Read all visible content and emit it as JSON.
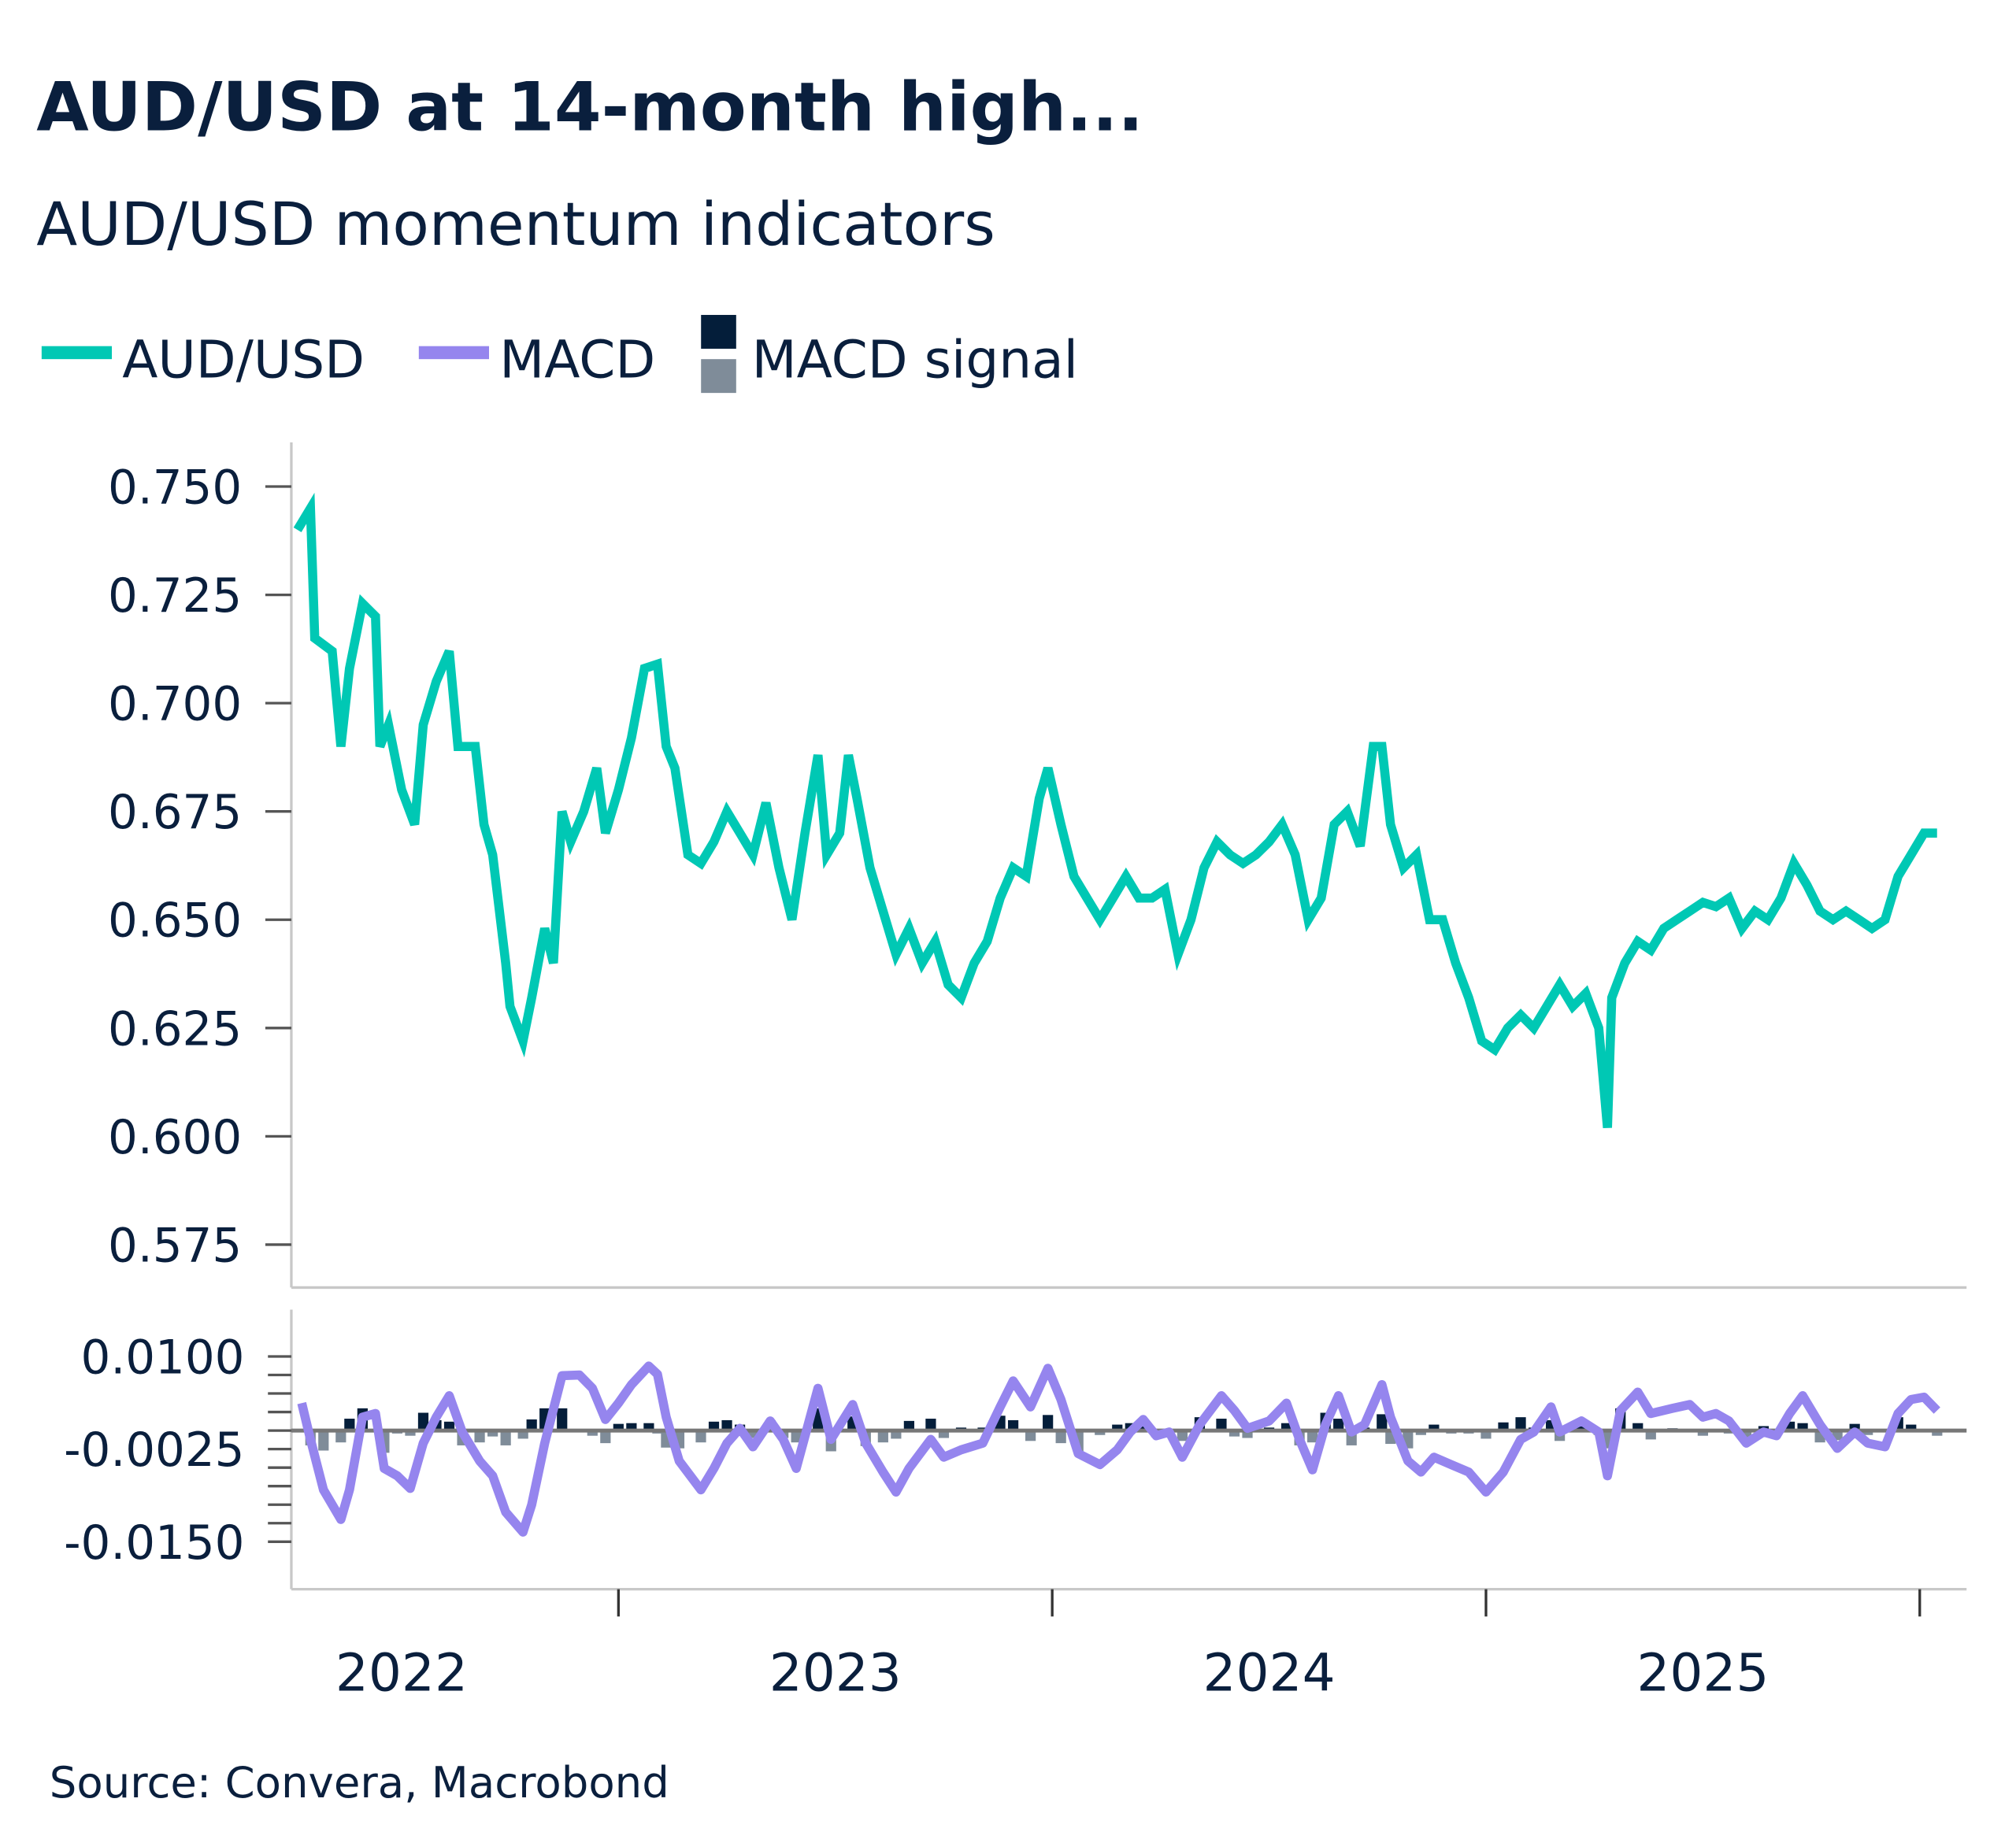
{
  "header": {
    "title": "AUD/USD at 14-month high...",
    "subtitle": "AUD/USD momentum indicators"
  },
  "legend": [
    {
      "label": "AUD/USD",
      "color": "#00c8b4"
    },
    {
      "label": "MACD",
      "color": "#9585ee"
    },
    {
      "label": "MACD signal",
      "colors": [
        "#041e3a",
        "#7f8c99"
      ]
    }
  ],
  "footer": {
    "source": "Source: Convera, Macrobond"
  },
  "chart_data": [
    {
      "type": "line",
      "panel": "top",
      "series_name": "AUD/USD",
      "color": "#00c8b4",
      "ylim": [
        0.565,
        0.76
      ],
      "yticks": [
        "0.750",
        "0.725",
        "0.700",
        "0.675",
        "0.650",
        "0.625",
        "0.600",
        "0.575"
      ],
      "xlim": [
        2022.0,
        2026.1
      ],
      "xticks": [
        "2022",
        "2023",
        "2024",
        "2025"
      ],
      "grid": false,
      "points": [
        [
          2022.26,
          0.74
        ],
        [
          2022.29,
          0.745
        ],
        [
          2022.3,
          0.715
        ],
        [
          2022.34,
          0.712
        ],
        [
          2022.36,
          0.69
        ],
        [
          2022.38,
          0.708
        ],
        [
          2022.41,
          0.723
        ],
        [
          2022.44,
          0.72
        ],
        [
          2022.45,
          0.69
        ],
        [
          2022.47,
          0.695
        ],
        [
          2022.5,
          0.68
        ],
        [
          2022.53,
          0.672
        ],
        [
          2022.55,
          0.695
        ],
        [
          2022.58,
          0.705
        ],
        [
          2022.61,
          0.712
        ],
        [
          2022.63,
          0.69
        ],
        [
          2022.67,
          0.69
        ],
        [
          2022.69,
          0.672
        ],
        [
          2022.71,
          0.665
        ],
        [
          2022.74,
          0.64
        ],
        [
          2022.75,
          0.63
        ],
        [
          2022.78,
          0.622
        ],
        [
          2022.8,
          0.632
        ],
        [
          2022.83,
          0.648
        ],
        [
          2022.85,
          0.64
        ],
        [
          2022.87,
          0.675
        ],
        [
          2022.89,
          0.668
        ],
        [
          2022.92,
          0.675
        ],
        [
          2022.95,
          0.685
        ],
        [
          2022.97,
          0.67
        ],
        [
          2023.0,
          0.68
        ],
        [
          2023.03,
          0.692
        ],
        [
          2023.06,
          0.708
        ],
        [
          2023.09,
          0.709
        ],
        [
          2023.11,
          0.69
        ],
        [
          2023.13,
          0.685
        ],
        [
          2023.16,
          0.665
        ],
        [
          2023.19,
          0.663
        ],
        [
          2023.22,
          0.668
        ],
        [
          2023.25,
          0.675
        ],
        [
          2023.28,
          0.67
        ],
        [
          2023.31,
          0.665
        ],
        [
          2023.34,
          0.677
        ],
        [
          2023.37,
          0.662
        ],
        [
          2023.4,
          0.65
        ],
        [
          2023.43,
          0.67
        ],
        [
          2023.46,
          0.688
        ],
        [
          2023.48,
          0.665
        ],
        [
          2023.51,
          0.67
        ],
        [
          2023.53,
          0.688
        ],
        [
          2023.55,
          0.678
        ],
        [
          2023.58,
          0.662
        ],
        [
          2023.61,
          0.652
        ],
        [
          2023.64,
          0.642
        ],
        [
          2023.67,
          0.648
        ],
        [
          2023.7,
          0.64
        ],
        [
          2023.73,
          0.645
        ],
        [
          2023.76,
          0.635
        ],
        [
          2023.79,
          0.632
        ],
        [
          2023.82,
          0.64
        ],
        [
          2023.85,
          0.645
        ],
        [
          2023.88,
          0.655
        ],
        [
          2023.91,
          0.662
        ],
        [
          2023.94,
          0.66
        ],
        [
          2023.97,
          0.678
        ],
        [
          2023.99,
          0.685
        ],
        [
          2024.02,
          0.672
        ],
        [
          2024.05,
          0.66
        ],
        [
          2024.08,
          0.655
        ],
        [
          2024.11,
          0.65
        ],
        [
          2024.14,
          0.655
        ],
        [
          2024.17,
          0.66
        ],
        [
          2024.2,
          0.655
        ],
        [
          2024.23,
          0.655
        ],
        [
          2024.26,
          0.657
        ],
        [
          2024.29,
          0.642
        ],
        [
          2024.32,
          0.65
        ],
        [
          2024.35,
          0.662
        ],
        [
          2024.38,
          0.668
        ],
        [
          2024.41,
          0.665
        ],
        [
          2024.44,
          0.663
        ],
        [
          2024.47,
          0.665
        ],
        [
          2024.5,
          0.668
        ],
        [
          2024.53,
          0.672
        ],
        [
          2024.56,
          0.665
        ],
        [
          2024.59,
          0.65
        ],
        [
          2024.62,
          0.655
        ],
        [
          2024.65,
          0.672
        ],
        [
          2024.68,
          0.675
        ],
        [
          2024.71,
          0.667
        ],
        [
          2024.74,
          0.69
        ],
        [
          2024.76,
          0.69
        ],
        [
          2024.78,
          0.672
        ],
        [
          2024.81,
          0.662
        ],
        [
          2024.84,
          0.665
        ],
        [
          2024.87,
          0.65
        ],
        [
          2024.9,
          0.65
        ],
        [
          2024.93,
          0.64
        ],
        [
          2024.96,
          0.632
        ],
        [
          2024.99,
          0.622
        ],
        [
          2025.02,
          0.62
        ],
        [
          2025.05,
          0.625
        ],
        [
          2025.08,
          0.628
        ],
        [
          2025.11,
          0.625
        ],
        [
          2025.14,
          0.63
        ],
        [
          2025.17,
          0.635
        ],
        [
          2025.2,
          0.63
        ],
        [
          2025.23,
          0.633
        ],
        [
          2025.26,
          0.625
        ],
        [
          2025.28,
          0.602
        ],
        [
          2025.29,
          0.632
        ],
        [
          2025.32,
          0.64
        ],
        [
          2025.35,
          0.645
        ],
        [
          2025.38,
          0.643
        ],
        [
          2025.41,
          0.648
        ],
        [
          2025.44,
          0.65
        ],
        [
          2025.47,
          0.652
        ],
        [
          2025.5,
          0.654
        ],
        [
          2025.53,
          0.653
        ],
        [
          2025.56,
          0.655
        ],
        [
          2025.59,
          0.648
        ],
        [
          2025.62,
          0.652
        ],
        [
          2025.65,
          0.65
        ],
        [
          2025.68,
          0.655
        ],
        [
          2025.71,
          0.663
        ],
        [
          2025.74,
          0.658
        ],
        [
          2025.77,
          0.652
        ],
        [
          2025.8,
          0.65
        ],
        [
          2025.83,
          0.652
        ],
        [
          2025.86,
          0.65
        ],
        [
          2025.89,
          0.648
        ],
        [
          2025.92,
          0.65
        ],
        [
          2025.95,
          0.66
        ],
        [
          2025.98,
          0.665
        ],
        [
          2026.01,
          0.67
        ],
        [
          2026.04,
          0.67
        ]
      ]
    },
    {
      "type": "line",
      "panel": "bottom",
      "series_names": [
        "MACD",
        "MACD signal"
      ],
      "colors": {
        "macd": "#9585ee",
        "signal_positive": "#041e3a",
        "signal_negative": "#7f8c99",
        "zero_line": "#777777"
      },
      "ylim": [
        -0.0215,
        0.016
      ],
      "yticks": [
        "0.0100",
        "-0.0025",
        "-0.0150"
      ],
      "minor_tick_step": 0.0025,
      "xlim": [
        2022.0,
        2026.1
      ],
      "grid": false,
      "columns": [
        "year",
        "macd",
        "signal"
      ],
      "points": [
        [
          2022.27,
          0.0037,
          0.0
        ],
        [
          2022.29,
          -0.0012,
          -0.002
        ],
        [
          2022.32,
          -0.008,
          -0.0027
        ],
        [
          2022.36,
          -0.012,
          -0.0016
        ],
        [
          2022.38,
          -0.008,
          0.0016
        ],
        [
          2022.41,
          0.0018,
          0.003
        ],
        [
          2022.44,
          0.0023,
          0.0002
        ],
        [
          2022.46,
          -0.0051,
          -0.003
        ],
        [
          2022.49,
          -0.0061,
          -0.0004
        ],
        [
          2022.52,
          -0.0078,
          -0.0007
        ],
        [
          2022.55,
          -0.0017,
          0.0024
        ],
        [
          2022.58,
          0.0018,
          0.0014
        ],
        [
          2022.61,
          0.0047,
          0.0012
        ],
        [
          2022.64,
          -0.0002,
          -0.002
        ],
        [
          2022.68,
          -0.0041,
          -0.0016
        ],
        [
          2022.71,
          -0.0061,
          -0.0008
        ],
        [
          2022.74,
          -0.011,
          -0.002
        ],
        [
          2022.78,
          -0.0137,
          -0.0011
        ],
        [
          2022.8,
          -0.01,
          0.0015
        ],
        [
          2022.83,
          -0.0017,
          0.003
        ],
        [
          2022.87,
          0.0074,
          0.003
        ],
        [
          2022.91,
          0.0075,
          0.0
        ],
        [
          2022.94,
          0.0057,
          -0.0007
        ],
        [
          2022.97,
          0.0015,
          -0.0017
        ],
        [
          2023.0,
          0.0037,
          0.0009
        ],
        [
          2023.03,
          0.0062,
          0.001
        ],
        [
          2023.07,
          0.0087,
          0.001
        ],
        [
          2023.09,
          0.0076,
          -0.0004
        ],
        [
          2023.11,
          0.0018,
          -0.0023
        ],
        [
          2023.14,
          -0.0041,
          -0.0024
        ],
        [
          2023.19,
          -0.008,
          -0.0016
        ],
        [
          2023.22,
          -0.0051,
          0.0012
        ],
        [
          2023.25,
          -0.0017,
          0.0014
        ],
        [
          2023.28,
          0.0003,
          0.0008
        ],
        [
          2023.31,
          -0.0022,
          -0.001
        ],
        [
          2023.35,
          0.0013,
          0.0014
        ],
        [
          2023.38,
          -0.0012,
          -0.001
        ],
        [
          2023.41,
          -0.0051,
          -0.0016
        ],
        [
          2023.46,
          0.0057,
          0.003
        ],
        [
          2023.49,
          -0.0012,
          -0.0028
        ],
        [
          2023.54,
          0.0035,
          0.0019
        ],
        [
          2023.57,
          -0.0017,
          -0.0021
        ],
        [
          2023.61,
          -0.0056,
          -0.0016
        ],
        [
          2023.64,
          -0.0083,
          -0.0011
        ],
        [
          2023.67,
          -0.0051,
          0.0013
        ],
        [
          2023.72,
          -0.0012,
          0.0016
        ],
        [
          2023.75,
          -0.0036,
          -0.001
        ],
        [
          2023.79,
          -0.0026,
          0.0004
        ],
        [
          2023.84,
          -0.0017,
          0.0004
        ],
        [
          2023.88,
          0.0032,
          0.002
        ],
        [
          2023.91,
          0.0067,
          0.0014
        ],
        [
          2023.95,
          0.0032,
          -0.0014
        ],
        [
          2023.99,
          0.0084,
          0.0021
        ],
        [
          2024.02,
          0.0042,
          -0.0017
        ],
        [
          2024.06,
          -0.0031,
          -0.0029
        ],
        [
          2024.11,
          -0.0046,
          -0.0006
        ],
        [
          2024.15,
          -0.0026,
          0.0008
        ],
        [
          2024.18,
          -0.0002,
          0.001
        ],
        [
          2024.21,
          0.0015,
          0.0007
        ],
        [
          2024.24,
          -0.0007,
          -0.0009
        ],
        [
          2024.27,
          -0.0002,
          0.0002
        ],
        [
          2024.3,
          -0.0036,
          -0.0014
        ],
        [
          2024.34,
          0.0008,
          0.0018
        ],
        [
          2024.39,
          0.0047,
          0.0016
        ],
        [
          2024.42,
          0.0027,
          -0.0008
        ],
        [
          2024.45,
          0.0003,
          -0.001
        ],
        [
          2024.5,
          0.0013,
          0.0004
        ],
        [
          2024.54,
          0.0037,
          0.001
        ],
        [
          2024.57,
          -0.0012,
          -0.002
        ],
        [
          2024.6,
          -0.0053,
          -0.0016
        ],
        [
          2024.63,
          0.0008,
          0.0024
        ],
        [
          2024.66,
          0.0047,
          0.0016
        ],
        [
          2024.69,
          -0.0002,
          -0.002
        ],
        [
          2024.72,
          0.0008,
          0.0004
        ],
        [
          2024.76,
          0.0062,
          0.0022
        ],
        [
          2024.78,
          0.0018,
          -0.0018
        ],
        [
          2024.82,
          -0.0041,
          -0.0024
        ],
        [
          2024.85,
          -0.0056,
          -0.0006
        ],
        [
          2024.88,
          -0.0036,
          0.0008
        ],
        [
          2024.92,
          -0.0046,
          -0.0004
        ],
        [
          2024.96,
          -0.0056,
          -0.0004
        ],
        [
          2025.0,
          -0.0083,
          -0.0011
        ],
        [
          2025.04,
          -0.0056,
          0.0011
        ],
        [
          2025.08,
          -0.0012,
          0.0018
        ],
        [
          2025.11,
          -0.0002,
          0.0004
        ],
        [
          2025.15,
          0.0032,
          0.0014
        ],
        [
          2025.17,
          -0.0002,
          -0.0014
        ],
        [
          2025.22,
          0.0013,
          0.0006
        ],
        [
          2025.26,
          -0.0002,
          -0.0006
        ],
        [
          2025.28,
          -0.0061,
          -0.0024
        ],
        [
          2025.31,
          0.0027,
          0.003
        ],
        [
          2025.35,
          0.0052,
          0.001
        ],
        [
          2025.38,
          0.0023,
          -0.0012
        ],
        [
          2025.43,
          0.003,
          0.0003
        ],
        [
          2025.47,
          0.0035,
          0.0002
        ],
        [
          2025.5,
          0.0018,
          -0.0007
        ],
        [
          2025.53,
          0.0023,
          0.0002
        ],
        [
          2025.56,
          0.0013,
          -0.0004
        ],
        [
          2025.6,
          -0.0017,
          -0.0012
        ],
        [
          2025.64,
          -0.0002,
          0.0006
        ],
        [
          2025.67,
          -0.0007,
          -0.0002
        ],
        [
          2025.7,
          0.0023,
          0.0012
        ],
        [
          2025.73,
          0.0047,
          0.001
        ],
        [
          2025.77,
          0.0008,
          -0.0016
        ],
        [
          2025.81,
          -0.0024,
          -0.0013
        ],
        [
          2025.85,
          -0.0002,
          0.0009
        ],
        [
          2025.88,
          -0.0017,
          -0.0006
        ],
        [
          2025.92,
          -0.0022,
          -0.0002
        ],
        [
          2025.95,
          0.0023,
          0.0018
        ],
        [
          2025.98,
          0.0042,
          0.0008
        ],
        [
          2026.01,
          0.0045,
          0.0001
        ],
        [
          2026.04,
          0.0027,
          -0.0007
        ]
      ]
    }
  ]
}
